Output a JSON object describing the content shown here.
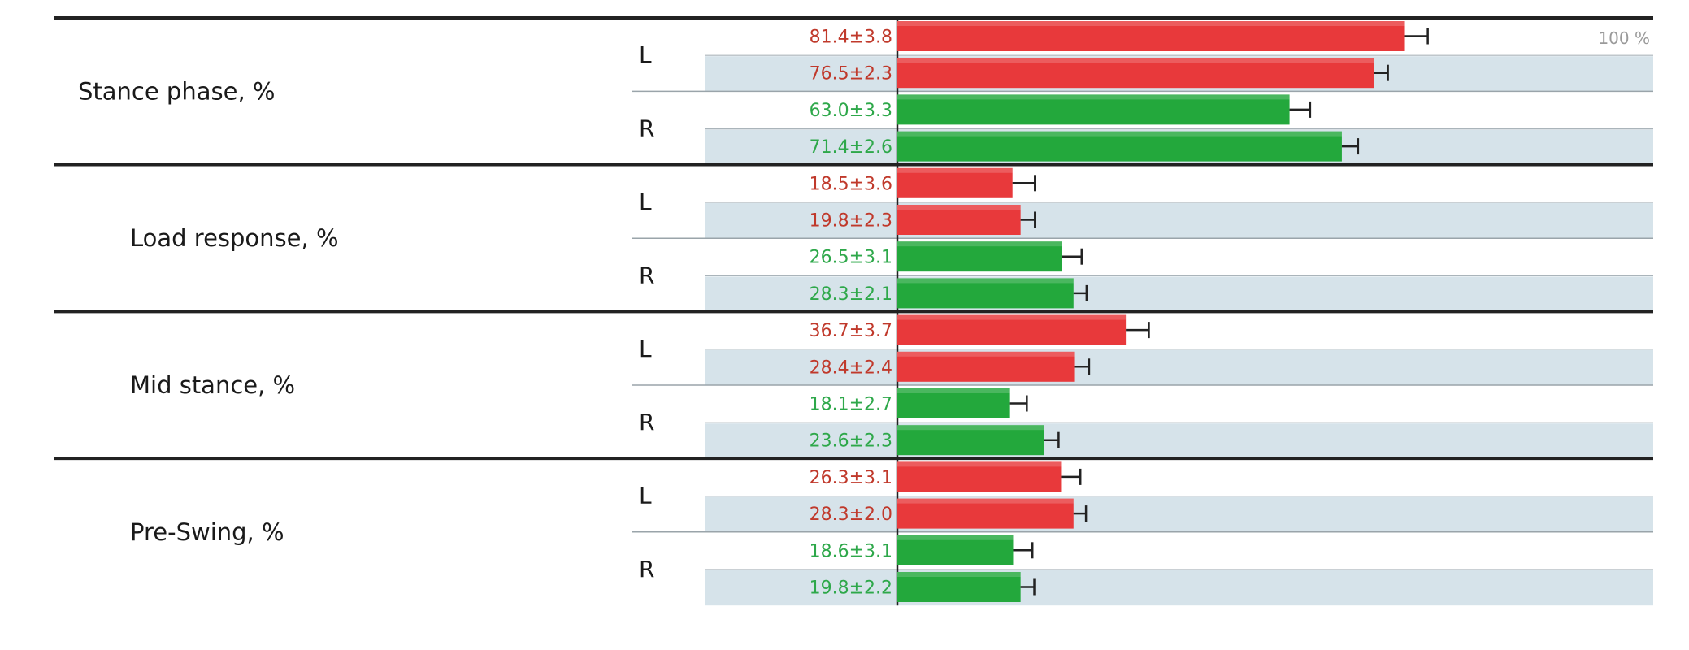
{
  "chart_data": {
    "type": "bar",
    "orientation": "horizontal",
    "scale_label": "100 %",
    "xlim": [
      0,
      100
    ],
    "colors": {
      "L": "#e8393b",
      "R": "#23a83c",
      "L_text": "#c0392b",
      "R_text": "#2ea84a",
      "shade": "#d6e3ea"
    },
    "groups": [
      {
        "name": "Stance phase, %",
        "sides": [
          {
            "side": "L",
            "bars": [
              {
                "label": "81.4±3.8",
                "value": 81.4,
                "error": 3.8
              },
              {
                "label": "76.5±2.3",
                "value": 76.5,
                "error": 2.3
              }
            ]
          },
          {
            "side": "R",
            "bars": [
              {
                "label": "63.0±3.3",
                "value": 63.0,
                "error": 3.3
              },
              {
                "label": "71.4±2.6",
                "value": 71.4,
                "error": 2.6
              }
            ]
          }
        ]
      },
      {
        "name": "Load response, %",
        "sides": [
          {
            "side": "L",
            "bars": [
              {
                "label": "18.5±3.6",
                "value": 18.5,
                "error": 3.6
              },
              {
                "label": "19.8±2.3",
                "value": 19.8,
                "error": 2.3
              }
            ]
          },
          {
            "side": "R",
            "bars": [
              {
                "label": "26.5±3.1",
                "value": 26.5,
                "error": 3.1
              },
              {
                "label": "28.3±2.1",
                "value": 28.3,
                "error": 2.1
              }
            ]
          }
        ]
      },
      {
        "name": "Mid stance, %",
        "sides": [
          {
            "side": "L",
            "bars": [
              {
                "label": "36.7±3.7",
                "value": 36.7,
                "error": 3.7
              },
              {
                "label": "28.4±2.4",
                "value": 28.4,
                "error": 2.4
              }
            ]
          },
          {
            "side": "R",
            "bars": [
              {
                "label": "18.1±2.7",
                "value": 18.1,
                "error": 2.7
              },
              {
                "label": "23.6±2.3",
                "value": 23.6,
                "error": 2.3
              }
            ]
          }
        ]
      },
      {
        "name": "Pre-Swing, %",
        "sides": [
          {
            "side": "L",
            "bars": [
              {
                "label": "26.3±3.1",
                "value": 26.3,
                "error": 3.1
              },
              {
                "label": "28.3±2.0",
                "value": 28.3,
                "error": 2.0
              }
            ]
          },
          {
            "side": "R",
            "bars": [
              {
                "label": "18.6±3.1",
                "value": 18.6,
                "error": 3.1
              },
              {
                "label": "19.8±2.2",
                "value": 19.8,
                "error": 2.2
              }
            ]
          }
        ]
      }
    ]
  }
}
